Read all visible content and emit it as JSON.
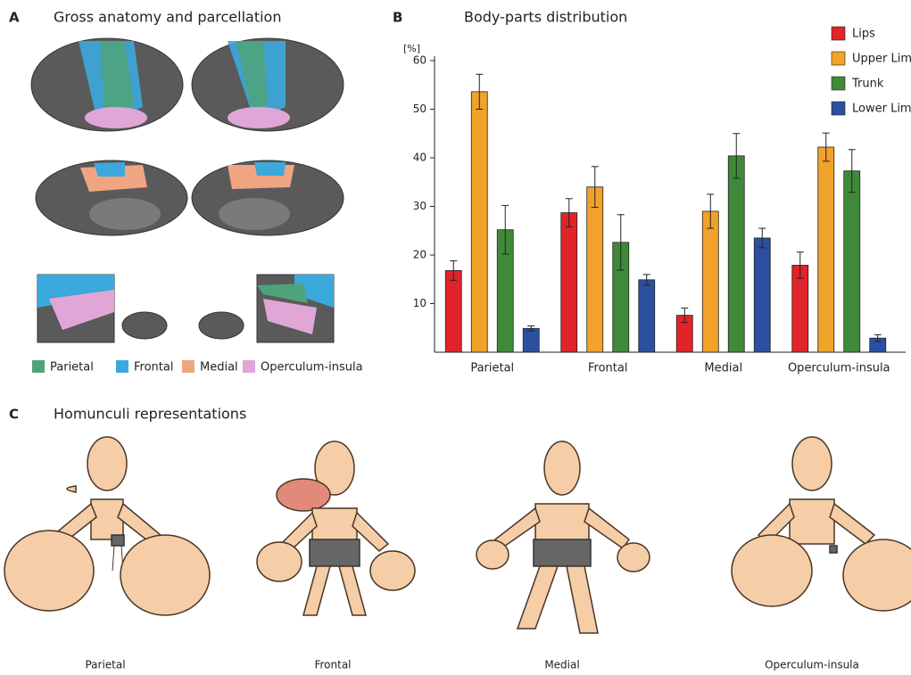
{
  "panels": {
    "a": {
      "letter": "A",
      "title": "Gross anatomy and parcellation",
      "legend": [
        {
          "name": "Parietal",
          "color": "#4fa37c"
        },
        {
          "name": "Frontal",
          "color": "#3ba9dc"
        },
        {
          "name": "Medial",
          "color": "#f0a582"
        },
        {
          "name": "Operculum-insula",
          "color": "#e0a6d6"
        }
      ]
    },
    "c": {
      "letter": "C",
      "title": "Homunculi representations",
      "labels": [
        "Parietal",
        "Frontal",
        "Medial",
        "Operculum-insula"
      ]
    }
  },
  "chart_data": {
    "type": "bar",
    "panel": "B",
    "title": "Body-parts distribution",
    "y_label": "[%]",
    "categories": [
      "Parietal",
      "Frontal",
      "Medial",
      "Operculum-insula"
    ],
    "series": [
      {
        "name": "Lips",
        "color": "#e0242a",
        "values": [
          16.8,
          28.7,
          7.6,
          17.9
        ],
        "errors": [
          2.0,
          2.9,
          1.5,
          2.7
        ]
      },
      {
        "name": "Upper Limb",
        "color": "#f0a22a",
        "values": [
          53.6,
          34.0,
          29.0,
          42.2
        ],
        "errors": [
          3.6,
          4.2,
          3.5,
          2.9
        ]
      },
      {
        "name": "Trunk",
        "color": "#3f8a3a",
        "values": [
          25.2,
          22.6,
          40.4,
          37.3
        ],
        "errors": [
          5.0,
          5.7,
          4.6,
          4.4
        ]
      },
      {
        "name": "Lower Limb",
        "color": "#2c4fa0",
        "values": [
          4.9,
          14.9,
          23.5,
          2.9
        ],
        "errors": [
          0.5,
          1.1,
          2.0,
          0.7
        ]
      }
    ],
    "ylim": [
      0,
      60
    ],
    "yticks": [
      10,
      20,
      30,
      40,
      50,
      60
    ]
  }
}
